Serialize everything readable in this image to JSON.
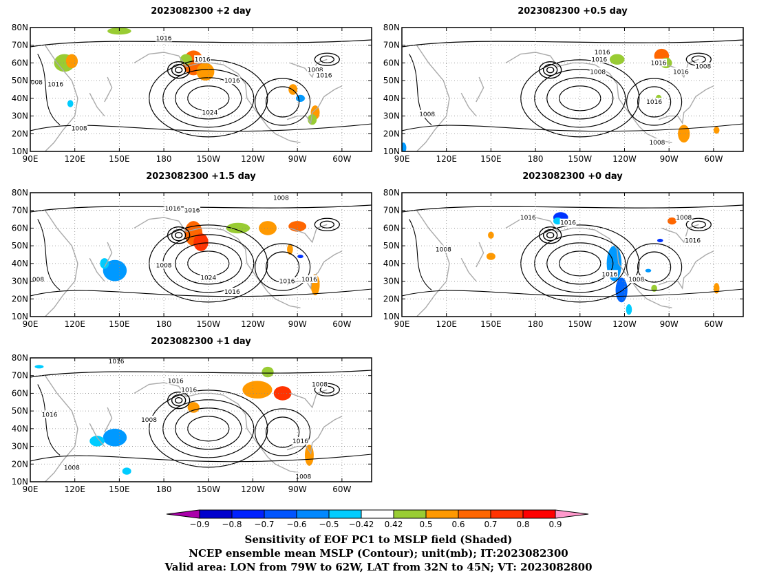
{
  "panels": [
    {
      "id": "p2d",
      "title": "2023082300 +2 day",
      "contour_labels": [
        {
          "text": "1016",
          "lon": 180,
          "lat": 74
        },
        {
          "text": "1016",
          "lon": -154,
          "lat": 62
        },
        {
          "text": "1016",
          "lon": -134,
          "lat": 50
        },
        {
          "text": "1024",
          "lon": -149,
          "lat": 32
        },
        {
          "text": "1008",
          "lon": 93,
          "lat": 49
        },
        {
          "text": "1016",
          "lon": 107,
          "lat": 48
        },
        {
          "text": "1008",
          "lon": -78,
          "lat": 56
        },
        {
          "text": "1016",
          "lon": -72,
          "lat": 53
        },
        {
          "text": "1008",
          "lon": 123,
          "lat": 23
        }
      ],
      "shading": [
        {
          "lon": 113,
          "lat": 60,
          "rx": 7,
          "ry": 5,
          "c": "#99cc33"
        },
        {
          "lon": 118,
          "lat": 61,
          "rx": 4,
          "ry": 4,
          "c": "#ff9900"
        },
        {
          "lon": -160,
          "lat": 60,
          "rx": 7,
          "ry": 7,
          "c": "#ff6600"
        },
        {
          "lon": -152,
          "lat": 55,
          "rx": 6,
          "ry": 5,
          "c": "#ff9900"
        },
        {
          "lon": -165,
          "lat": 62,
          "rx": 4,
          "ry": 3,
          "c": "#99cc33"
        },
        {
          "lon": -93,
          "lat": 45,
          "rx": 3,
          "ry": 3,
          "c": "#ff9900"
        },
        {
          "lon": -78,
          "lat": 32,
          "rx": 3,
          "ry": 4,
          "c": "#ff9900"
        },
        {
          "lon": -80,
          "lat": 28,
          "rx": 3,
          "ry": 3,
          "c": "#99cc33"
        },
        {
          "lon": -88,
          "lat": 40,
          "rx": 3,
          "ry": 2,
          "c": "#0099ff"
        },
        {
          "lon": 117,
          "lat": 37,
          "rx": 2,
          "ry": 2,
          "c": "#00ccff"
        },
        {
          "lon": 150,
          "lat": 78,
          "rx": 8,
          "ry": 2,
          "c": "#99cc33"
        }
      ]
    },
    {
      "id": "p05d",
      "title": "2023082300 +0.5 day",
      "contour_labels": [
        {
          "text": "1016",
          "lon": -135,
          "lat": 66
        },
        {
          "text": "1016",
          "lon": -137,
          "lat": 62
        },
        {
          "text": "1008",
          "lon": -138,
          "lat": 55
        },
        {
          "text": "1016",
          "lon": -97,
          "lat": 60
        },
        {
          "text": "1016",
          "lon": -82,
          "lat": 55
        },
        {
          "text": "1008",
          "lon": -67,
          "lat": 58
        },
        {
          "text": "1016",
          "lon": -100,
          "lat": 38
        },
        {
          "text": "1008",
          "lon": -98,
          "lat": 15
        },
        {
          "text": "1008",
          "lon": 107,
          "lat": 31
        }
      ],
      "shading": [
        {
          "lon": -95,
          "lat": 64,
          "rx": 5,
          "ry": 4,
          "c": "#ff6600"
        },
        {
          "lon": -92,
          "lat": 60,
          "rx": 4,
          "ry": 3,
          "c": "#99cc33"
        },
        {
          "lon": -125,
          "lat": 62,
          "rx": 5,
          "ry": 3,
          "c": "#99cc33"
        },
        {
          "lon": -80,
          "lat": 20,
          "rx": 4,
          "ry": 5,
          "c": "#ff9900"
        },
        {
          "lon": -58,
          "lat": 22,
          "rx": 2,
          "ry": 2,
          "c": "#ff9900"
        },
        {
          "lon": 91,
          "lat": 12,
          "rx": 2,
          "ry": 3,
          "c": "#0099ff"
        },
        {
          "lon": -97,
          "lat": 40,
          "rx": 2,
          "ry": 2,
          "c": "#99cc33"
        }
      ]
    },
    {
      "id": "p15d",
      "title": "2023082300 +1.5 day",
      "contour_labels": [
        {
          "text": "1016",
          "lon": -174,
          "lat": 71
        },
        {
          "text": "1016",
          "lon": -161,
          "lat": 70
        },
        {
          "text": "1008",
          "lon": -101,
          "lat": 77
        },
        {
          "text": "1008",
          "lon": -180,
          "lat": 39
        },
        {
          "text": "1024",
          "lon": -150,
          "lat": 32
        },
        {
          "text": "1016",
          "lon": -134,
          "lat": 24
        },
        {
          "text": "1016",
          "lon": -97,
          "lat": 30
        },
        {
          "text": "1016",
          "lon": -82,
          "lat": 31
        },
        {
          "text": "1008",
          "lon": 94,
          "lat": 31
        }
      ],
      "shading": [
        {
          "lon": -160,
          "lat": 57,
          "rx": 6,
          "ry": 7,
          "c": "#ff6600"
        },
        {
          "lon": -155,
          "lat": 52,
          "rx": 5,
          "ry": 5,
          "c": "#ff3300"
        },
        {
          "lon": -130,
          "lat": 60,
          "rx": 8,
          "ry": 3,
          "c": "#99cc33"
        },
        {
          "lon": -110,
          "lat": 60,
          "rx": 6,
          "ry": 4,
          "c": "#ff9900"
        },
        {
          "lon": -90,
          "lat": 61,
          "rx": 6,
          "ry": 3,
          "c": "#ff6600"
        },
        {
          "lon": -95,
          "lat": 48,
          "rx": 2,
          "ry": 3,
          "c": "#ff9900"
        },
        {
          "lon": -78,
          "lat": 28,
          "rx": 3,
          "ry": 6,
          "c": "#ff9900"
        },
        {
          "lon": 147,
          "lat": 36,
          "rx": 8,
          "ry": 6,
          "c": "#0099ff"
        },
        {
          "lon": 140,
          "lat": 40,
          "rx": 3,
          "ry": 3,
          "c": "#00ccff"
        },
        {
          "lon": -88,
          "lat": 44,
          "rx": 2,
          "ry": 1,
          "c": "#0033ff"
        }
      ]
    },
    {
      "id": "p0d",
      "title": "2023082300 +0 day",
      "contour_labels": [
        {
          "text": "1016",
          "lon": 175,
          "lat": 66
        },
        {
          "text": "1016",
          "lon": -158,
          "lat": 63
        },
        {
          "text": "1008",
          "lon": -80,
          "lat": 66
        },
        {
          "text": "1008",
          "lon": 118,
          "lat": 48
        },
        {
          "text": "1016",
          "lon": -74,
          "lat": 53
        },
        {
          "text": "1016",
          "lon": -130,
          "lat": 34
        },
        {
          "text": "1008",
          "lon": -112,
          "lat": 31
        }
      ],
      "shading": [
        {
          "lon": -163,
          "lat": 66,
          "rx": 5,
          "ry": 3,
          "c": "#0033ff"
        },
        {
          "lon": -165,
          "lat": 64,
          "rx": 3,
          "ry": 2,
          "c": "#00ccff"
        },
        {
          "lon": -127,
          "lat": 40,
          "rx": 5,
          "ry": 10,
          "c": "#0099ff"
        },
        {
          "lon": -122,
          "lat": 25,
          "rx": 4,
          "ry": 7,
          "c": "#0066ff"
        },
        {
          "lon": -117,
          "lat": 14,
          "rx": 2,
          "ry": 3,
          "c": "#00ccff"
        },
        {
          "lon": -88,
          "lat": 64,
          "rx": 3,
          "ry": 2,
          "c": "#ff6600"
        },
        {
          "lon": -96,
          "lat": 53,
          "rx": 2,
          "ry": 1,
          "c": "#0033ff"
        },
        {
          "lon": 150,
          "lat": 44,
          "rx": 3,
          "ry": 2,
          "c": "#ff9900"
        },
        {
          "lon": 150,
          "lat": 56,
          "rx": 2,
          "ry": 2,
          "c": "#ff9900"
        },
        {
          "lon": -58,
          "lat": 26,
          "rx": 2,
          "ry": 3,
          "c": "#ff9900"
        },
        {
          "lon": -100,
          "lat": 26,
          "rx": 2,
          "ry": 2,
          "c": "#99cc33"
        },
        {
          "lon": -104,
          "lat": 36,
          "rx": 2,
          "ry": 1,
          "c": "#0099ff"
        }
      ]
    },
    {
      "id": "p1d",
      "title": "2023082300 +1 day",
      "contour_labels": [
        {
          "text": "1016",
          "lon": 148,
          "lat": 78
        },
        {
          "text": "1016",
          "lon": -172,
          "lat": 67
        },
        {
          "text": "1016",
          "lon": -163,
          "lat": 62
        },
        {
          "text": "1016",
          "lon": 103,
          "lat": 48
        },
        {
          "text": "1008",
          "lon": 170,
          "lat": 45
        },
        {
          "text": "1016",
          "lon": -88,
          "lat": 33
        },
        {
          "text": "1008",
          "lon": -86,
          "lat": 13
        },
        {
          "text": "1008",
          "lon": 118,
          "lat": 18
        },
        {
          "text": "1008",
          "lon": -75,
          "lat": 65
        }
      ],
      "shading": [
        {
          "lon": -117,
          "lat": 62,
          "rx": 10,
          "ry": 5,
          "c": "#ff9900"
        },
        {
          "lon": -100,
          "lat": 60,
          "rx": 6,
          "ry": 4,
          "c": "#ff3300"
        },
        {
          "lon": -110,
          "lat": 72,
          "rx": 4,
          "ry": 3,
          "c": "#99cc33"
        },
        {
          "lon": -160,
          "lat": 52,
          "rx": 4,
          "ry": 3,
          "c": "#ff9900"
        },
        {
          "lon": 147,
          "lat": 35,
          "rx": 8,
          "ry": 5,
          "c": "#0099ff"
        },
        {
          "lon": 135,
          "lat": 33,
          "rx": 5,
          "ry": 3,
          "c": "#00ccff"
        },
        {
          "lon": -82,
          "lat": 25,
          "rx": 3,
          "ry": 6,
          "c": "#ff9900"
        },
        {
          "lon": 155,
          "lat": 16,
          "rx": 3,
          "ry": 2,
          "c": "#00ccff"
        },
        {
          "lon": 96,
          "lat": 75,
          "rx": 3,
          "ry": 1,
          "c": "#00ccff"
        }
      ]
    }
  ],
  "map": {
    "lat_labels": [
      "80N",
      "70N",
      "60N",
      "50N",
      "40N",
      "30N",
      "20N",
      "10N"
    ],
    "lon_labels": [
      "90E",
      "120E",
      "150E",
      "180",
      "150W",
      "120W",
      "90W",
      "60W"
    ]
  },
  "colorbar": {
    "labels": [
      "−0.9",
      "−0.8",
      "−0.7",
      "−0.6",
      "−0.5",
      "−0.42",
      "0.42",
      "0.5",
      "0.6",
      "0.7",
      "0.8",
      "0.9"
    ],
    "colors": [
      "#aa00aa",
      "#0000cc",
      "#0022ff",
      "#0055ff",
      "#0088ff",
      "#00ccff",
      "#ffffff",
      "#99cc33",
      "#ff9900",
      "#ff6600",
      "#ff3300",
      "#ff0000",
      "#ff99cc"
    ]
  },
  "caption": {
    "line1": "Sensitivity of EOF PC1 to MSLP field (Shaded)",
    "line2": "NCEP ensemble mean MSLP (Contour); unit(mb); IT:2023082300",
    "line3": "Valid area: LON from 79W to 62W, LAT from 32N to 45N; VT: 2023082800"
  }
}
